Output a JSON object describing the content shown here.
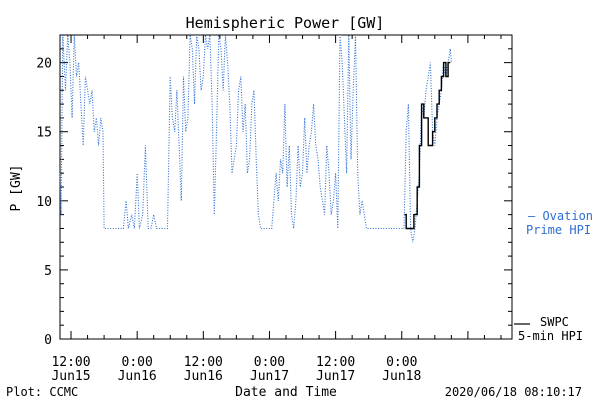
{
  "chart_data": {
    "type": "line",
    "title": "Hemispheric Power [GW]",
    "xlabel": "Date and Time",
    "ylabel": "P [GW]",
    "ylim": [
      0,
      22
    ],
    "xlim_hours": [
      -62,
      20
    ],
    "y_ticks": [
      0,
      5,
      10,
      15,
      20
    ],
    "x_ticks": [
      {
        "t": -60,
        "time": "12:00",
        "date": "Jun15"
      },
      {
        "t": -48,
        "time": "0:00",
        "date": "Jun16"
      },
      {
        "t": -36,
        "time": "12:00",
        "date": "Jun16"
      },
      {
        "t": -24,
        "time": "0:00",
        "date": "Jun17"
      },
      {
        "t": -12,
        "time": "12:00",
        "date": "Jun17"
      },
      {
        "t": 0,
        "time": "0:00",
        "date": "Jun18"
      }
    ],
    "series": [
      {
        "name": "Ovation Prime HPI",
        "legend_line1": "— Ovation",
        "legend_line2": "Prime HPI",
        "color": "#2e6fd1",
        "style": "dotted",
        "points": [
          [
            -62,
            12
          ],
          [
            -61.8,
            9
          ],
          [
            -61.5,
            22
          ],
          [
            -61,
            18
          ],
          [
            -60.6,
            22
          ],
          [
            -60.2,
            20
          ],
          [
            -59.8,
            16
          ],
          [
            -59.4,
            22
          ],
          [
            -59,
            19
          ],
          [
            -58.6,
            20
          ],
          [
            -58.2,
            17
          ],
          [
            -57.8,
            14
          ],
          [
            -57.4,
            19
          ],
          [
            -57,
            18
          ],
          [
            -56.6,
            17
          ],
          [
            -56.2,
            18
          ],
          [
            -55.8,
            15
          ],
          [
            -55.4,
            16
          ],
          [
            -55,
            14
          ],
          [
            -54.6,
            16
          ],
          [
            -54.2,
            15
          ],
          [
            -54,
            8
          ],
          [
            -53,
            8
          ],
          [
            -51,
            8
          ],
          [
            -50.5,
            8
          ],
          [
            -50,
            10
          ],
          [
            -49.6,
            8
          ],
          [
            -49,
            9
          ],
          [
            -48.5,
            8
          ],
          [
            -48,
            12
          ],
          [
            -47.6,
            8
          ],
          [
            -47,
            9
          ],
          [
            -46.5,
            14
          ],
          [
            -46,
            8
          ],
          [
            -45.5,
            8
          ],
          [
            -45,
            9
          ],
          [
            -44.5,
            8
          ],
          [
            -43,
            8
          ],
          [
            -42.5,
            8
          ],
          [
            -42,
            19
          ],
          [
            -41.6,
            16
          ],
          [
            -41.2,
            15
          ],
          [
            -40.8,
            18
          ],
          [
            -40.4,
            14
          ],
          [
            -40,
            10
          ],
          [
            -39.6,
            19
          ],
          [
            -39.2,
            15
          ],
          [
            -38.8,
            16
          ],
          [
            -38.4,
            22
          ],
          [
            -38,
            21
          ],
          [
            -37.6,
            17
          ],
          [
            -37.2,
            22
          ],
          [
            -36.8,
            21
          ],
          [
            -36.4,
            18
          ],
          [
            -36,
            19
          ],
          [
            -35.6,
            22
          ],
          [
            -35.2,
            21
          ],
          [
            -34.8,
            22
          ],
          [
            -34.4,
            17
          ],
          [
            -34,
            9
          ],
          [
            -33.6,
            15
          ],
          [
            -33.2,
            22
          ],
          [
            -32.8,
            21
          ],
          [
            -32.4,
            18
          ],
          [
            -32,
            22
          ],
          [
            -31.6,
            20
          ],
          [
            -31.2,
            17
          ],
          [
            -30.8,
            12
          ],
          [
            -30.4,
            13
          ],
          [
            -30,
            14
          ],
          [
            -29.6,
            18
          ],
          [
            -29.2,
            19
          ],
          [
            -28.8,
            15
          ],
          [
            -28.4,
            17
          ],
          [
            -28,
            12
          ],
          [
            -27.6,
            13
          ],
          [
            -27.2,
            17
          ],
          [
            -26.8,
            18
          ],
          [
            -26.4,
            13
          ],
          [
            -26,
            9
          ],
          [
            -25.6,
            8
          ],
          [
            -24,
            8
          ],
          [
            -23.6,
            8
          ],
          [
            -23.2,
            10
          ],
          [
            -22.8,
            12
          ],
          [
            -22.4,
            10
          ],
          [
            -22,
            13
          ],
          [
            -21.6,
            12
          ],
          [
            -21.2,
            17
          ],
          [
            -20.8,
            11
          ],
          [
            -20.4,
            14
          ],
          [
            -20,
            9
          ],
          [
            -19.6,
            8
          ],
          [
            -19.2,
            10
          ],
          [
            -18.8,
            14
          ],
          [
            -18.4,
            11
          ],
          [
            -18,
            12
          ],
          [
            -17.6,
            16
          ],
          [
            -17.2,
            12
          ],
          [
            -16.8,
            14
          ],
          [
            -16.4,
            15
          ],
          [
            -16,
            17
          ],
          [
            -15.6,
            14
          ],
          [
            -15.2,
            13
          ],
          [
            -14.8,
            11
          ],
          [
            -14.4,
            10
          ],
          [
            -14,
            9
          ],
          [
            -13.6,
            14
          ],
          [
            -13.2,
            12
          ],
          [
            -12.8,
            9
          ],
          [
            -12.4,
            10
          ],
          [
            -12,
            12
          ],
          [
            -11.6,
            8
          ],
          [
            -11.2,
            22
          ],
          [
            -10.8,
            20
          ],
          [
            -10.4,
            16
          ],
          [
            -10,
            12
          ],
          [
            -9.6,
            22
          ],
          [
            -9.2,
            13
          ],
          [
            -8.8,
            18
          ],
          [
            -8.4,
            22
          ],
          [
            -8,
            12
          ],
          [
            -7.6,
            9
          ],
          [
            -7.2,
            10
          ],
          [
            -6.8,
            9
          ],
          [
            -6.4,
            8
          ],
          [
            -6,
            8
          ],
          [
            -4,
            8
          ],
          [
            -2,
            8
          ],
          [
            0,
            8
          ],
          [
            0.4,
            8
          ],
          [
            0.8,
            15
          ],
          [
            1.2,
            17
          ],
          [
            1.6,
            8
          ],
          [
            2,
            7
          ],
          [
            2.4,
            8
          ],
          [
            2.8,
            10
          ],
          [
            3.2,
            12
          ],
          [
            3.6,
            17
          ],
          [
            4,
            16
          ],
          [
            4.4,
            18
          ],
          [
            4.8,
            19
          ],
          [
            5.2,
            20
          ],
          [
            5.6,
            15
          ],
          [
            6,
            14
          ],
          [
            6.4,
            16
          ],
          [
            6.8,
            17
          ],
          [
            7.2,
            18
          ],
          [
            7.6,
            20
          ],
          [
            8,
            19
          ],
          [
            8.4,
            20
          ],
          [
            8.8,
            21
          ],
          [
            9,
            20
          ]
        ]
      },
      {
        "name": "SWPC 5-min HPI",
        "legend_line1": "SWPC",
        "legend_line2": "5-min HPI",
        "color": "#000000",
        "style": "solid",
        "points": [
          [
            0.5,
            9
          ],
          [
            0.8,
            9
          ],
          [
            0.8,
            8
          ],
          [
            2.2,
            8
          ],
          [
            2.2,
            9
          ],
          [
            2.8,
            9
          ],
          [
            2.8,
            11
          ],
          [
            3.2,
            11
          ],
          [
            3.2,
            14
          ],
          [
            3.6,
            14
          ],
          [
            3.6,
            17
          ],
          [
            4,
            17
          ],
          [
            4,
            16
          ],
          [
            4.8,
            16
          ],
          [
            4.8,
            14
          ],
          [
            5.6,
            14
          ],
          [
            5.6,
            15
          ],
          [
            6,
            15
          ],
          [
            6,
            16
          ],
          [
            6.4,
            16
          ],
          [
            6.4,
            17
          ],
          [
            6.8,
            17
          ],
          [
            6.8,
            18
          ],
          [
            7.2,
            18
          ],
          [
            7.2,
            19
          ],
          [
            7.6,
            19
          ],
          [
            7.6,
            20
          ],
          [
            8,
            20
          ],
          [
            8,
            19
          ],
          [
            8.4,
            19
          ],
          [
            8.4,
            20
          ],
          [
            8.8,
            20
          ]
        ]
      }
    ],
    "legend_placement": "right"
  },
  "footer": {
    "left": "Plot: CCMC",
    "right": "2020/06/18 08:10:17"
  }
}
